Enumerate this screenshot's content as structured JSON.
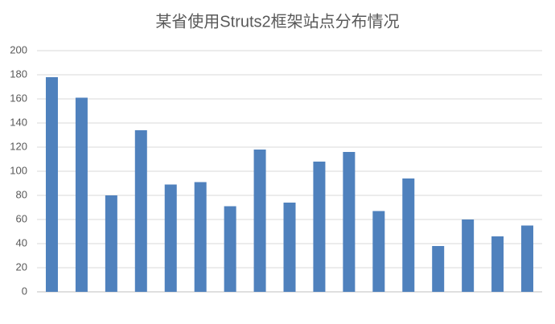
{
  "chart_data": {
    "type": "bar",
    "title": "某省使用Struts2框架站点分布情况",
    "categories": [
      null,
      null,
      null,
      null,
      null,
      null,
      null,
      null,
      null,
      null,
      null,
      null,
      null,
      null,
      null,
      null,
      null
    ],
    "values": [
      178,
      161,
      80,
      134,
      89,
      91,
      71,
      118,
      74,
      108,
      116,
      67,
      94,
      38,
      60,
      46,
      55
    ],
    "color": "#4f81bd",
    "ylim": [
      0,
      200
    ],
    "yticks": [
      0,
      20,
      40,
      60,
      80,
      100,
      120,
      140,
      160,
      180,
      200
    ],
    "grid": true
  }
}
